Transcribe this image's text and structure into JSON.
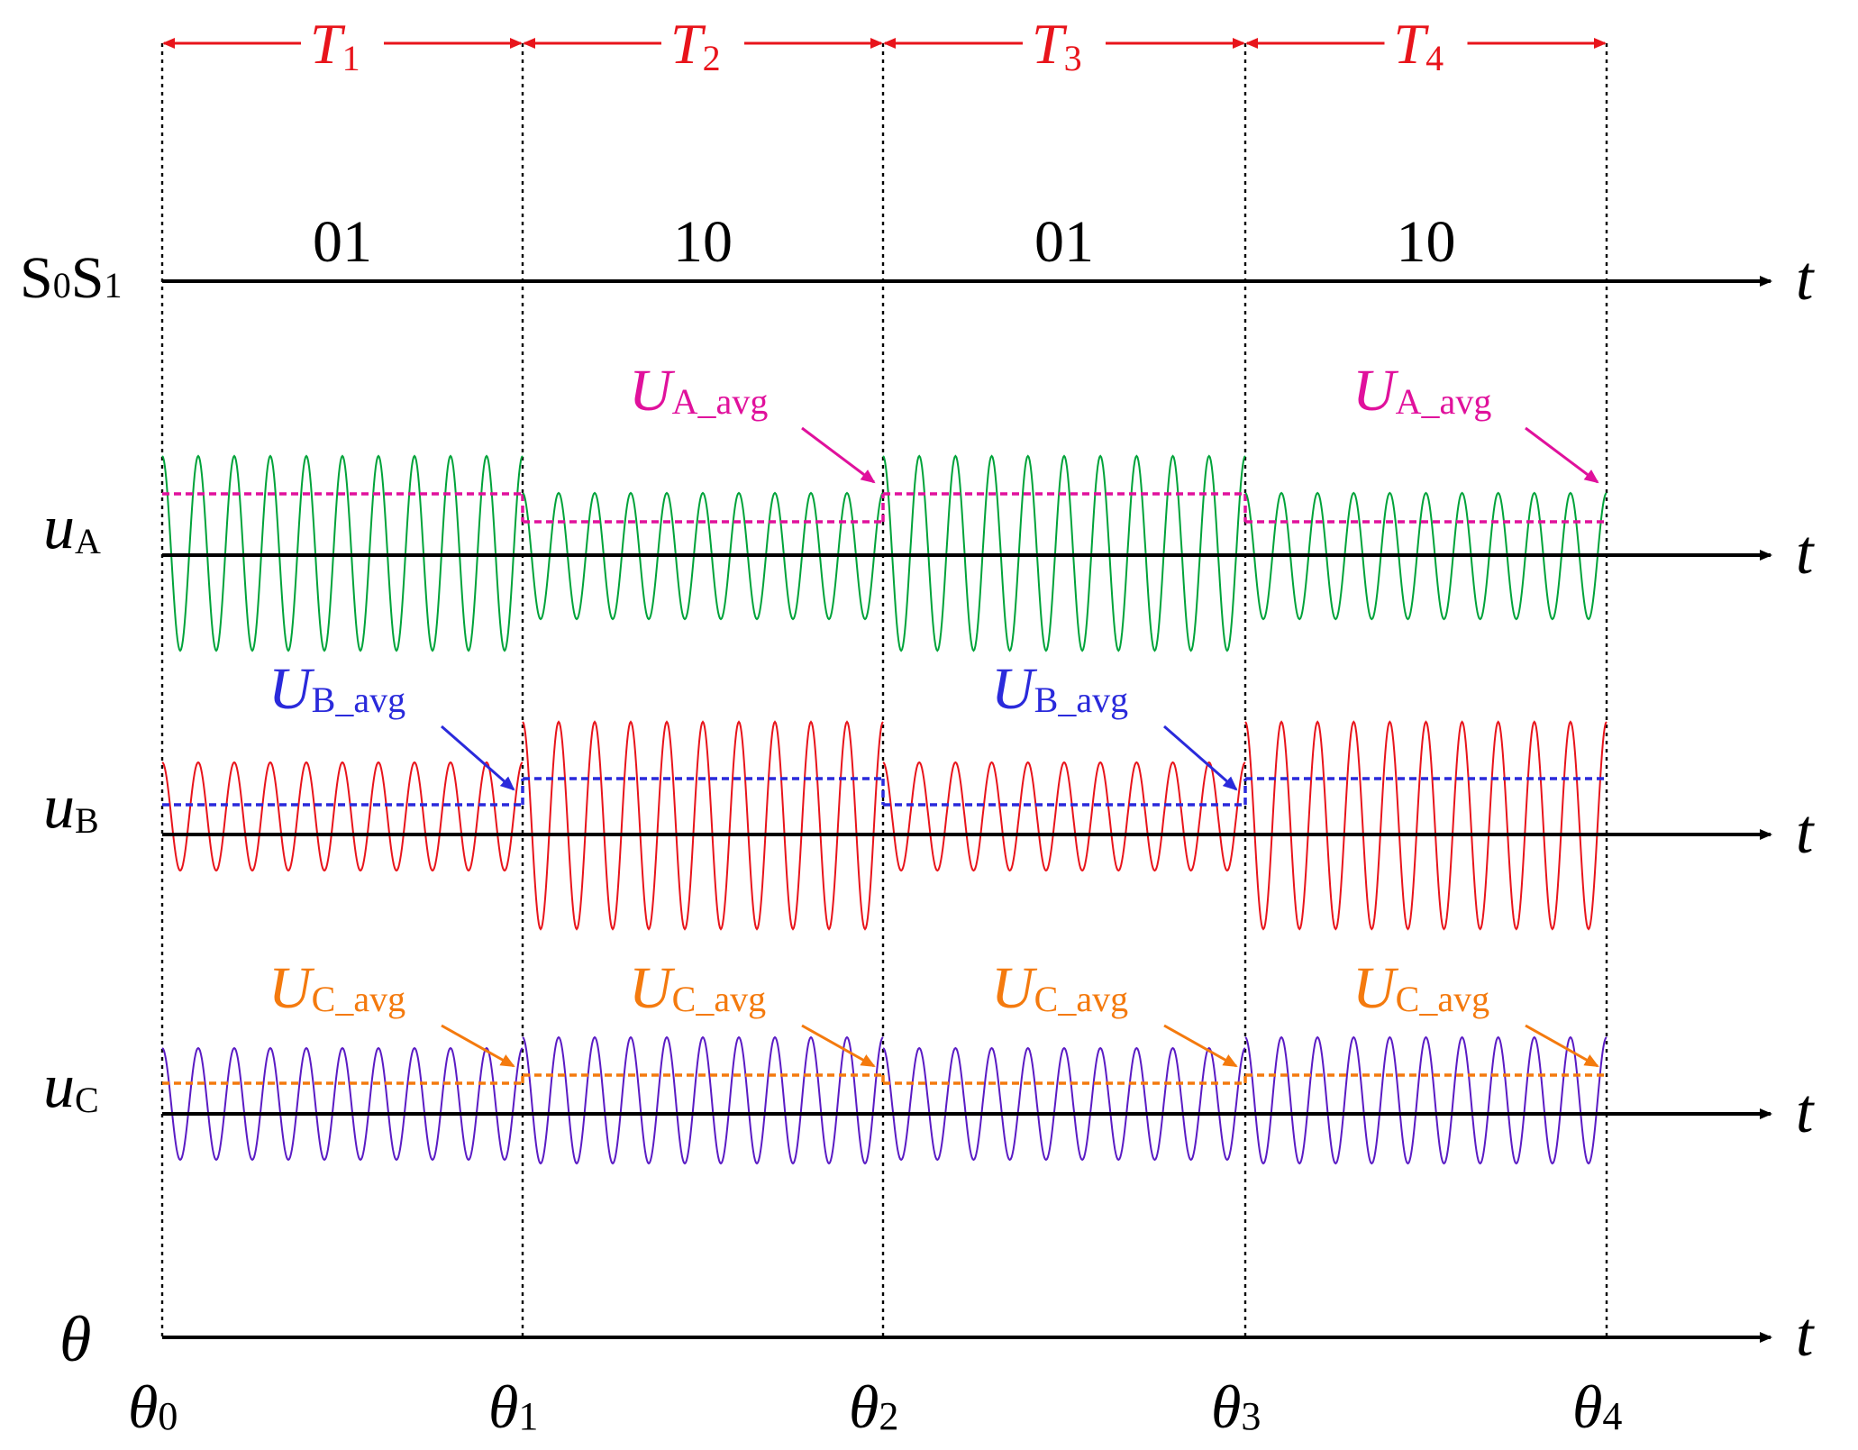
{
  "periods": [
    {
      "label": "T",
      "sub": "1",
      "state": "01"
    },
    {
      "label": "T",
      "sub": "2",
      "state": "10"
    },
    {
      "label": "T",
      "sub": "3",
      "state": "01"
    },
    {
      "label": "T",
      "sub": "4",
      "state": "10"
    }
  ],
  "switch_row": {
    "label": "S",
    "s0_sub": "0",
    "s1": "S",
    "s1_sub": "1"
  },
  "time_label": "t",
  "theta_row": {
    "label": "θ"
  },
  "theta_ticks": [
    {
      "label": "θ",
      "sub": "0"
    },
    {
      "label": "θ",
      "sub": "1"
    },
    {
      "label": "θ",
      "sub": "2"
    },
    {
      "label": "θ",
      "sub": "3"
    },
    {
      "label": "θ",
      "sub": "4"
    }
  ],
  "rows": [
    {
      "key": "A",
      "label": "u",
      "sub": "A",
      "color": "#00a33a",
      "avg_color": "#e0119c",
      "avg_label": "U",
      "avg_sub": "A_avg",
      "amplitude_pattern": [
        "large",
        "small",
        "large",
        "small"
      ],
      "avg_pattern": [
        "high",
        "low",
        "high",
        "low"
      ],
      "annotations": [
        {
          "text": "U",
          "sub": "A_avg",
          "at_boundary": 2
        },
        {
          "text": "U",
          "sub": "A_avg",
          "at_boundary": 4
        }
      ]
    },
    {
      "key": "B",
      "label": "u",
      "sub": "B",
      "color": "#e8141b",
      "avg_color": "#2a2adb",
      "avg_label": "U",
      "avg_sub": "B_avg",
      "amplitude_pattern": [
        "small",
        "large",
        "small",
        "large"
      ],
      "avg_pattern": [
        "low",
        "high",
        "low",
        "high"
      ],
      "annotations": [
        {
          "text": "U",
          "sub": "B_avg",
          "at_boundary": 1
        },
        {
          "text": "U",
          "sub": "B_avg",
          "at_boundary": 3
        }
      ]
    },
    {
      "key": "C",
      "label": "u",
      "sub": "C",
      "color": "#5a1bc4",
      "avg_color": "#f47a0e",
      "avg_label": "U",
      "avg_sub": "C_avg",
      "amplitude_pattern": [
        "small",
        "large",
        "small",
        "large"
      ],
      "avg_pattern": [
        "low",
        "high",
        "low",
        "high"
      ],
      "annotations": [
        {
          "text": "U",
          "sub": "C_avg",
          "at_boundary": 1
        },
        {
          "text": "U",
          "sub": "C_avg",
          "at_boundary": 2
        },
        {
          "text": "U",
          "sub": "C_avg",
          "at_boundary": 3
        },
        {
          "text": "U",
          "sub": "C_avg",
          "at_boundary": 4
        }
      ]
    }
  ],
  "colors": {
    "period_arrow": "#e8141b",
    "axis": "#000000",
    "guide": "#000000"
  }
}
